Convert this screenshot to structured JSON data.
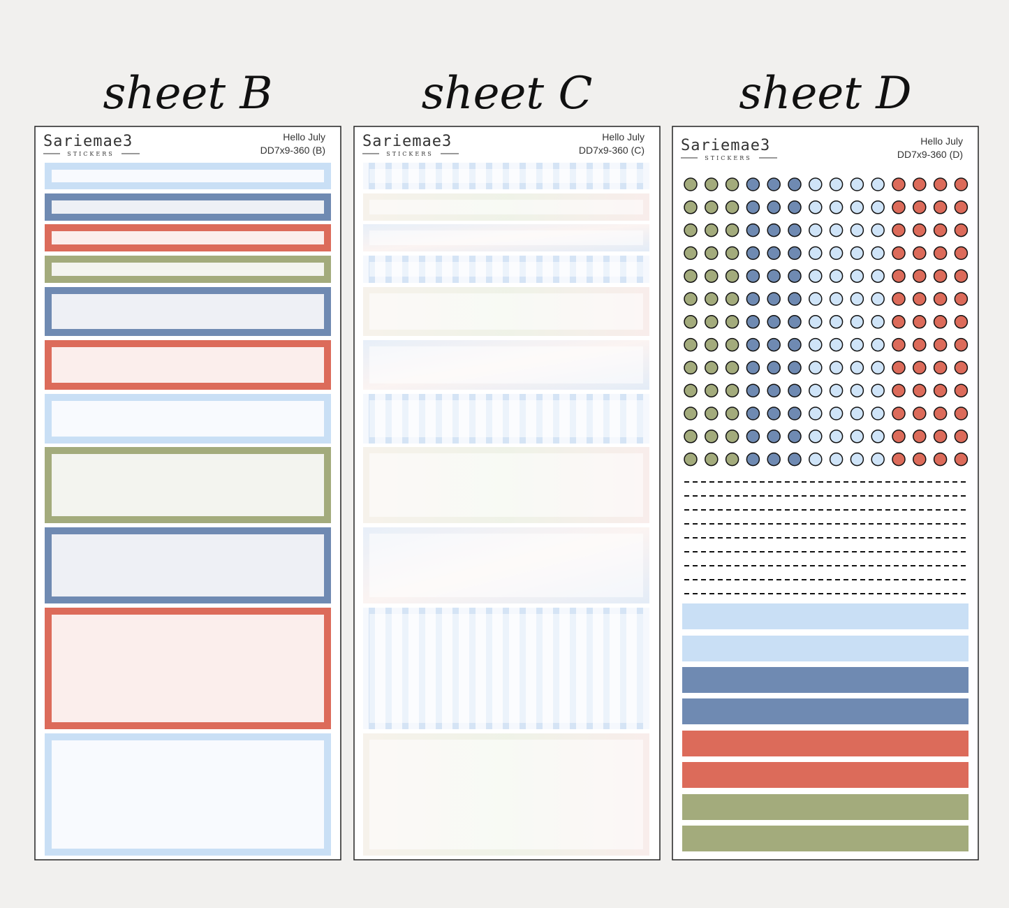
{
  "sheets": [
    {
      "title": "sheet B",
      "brand": "Sariemae3",
      "brand_sub": "STICKERS",
      "name": "Hello July",
      "code": "DD7x9-360 (B)"
    },
    {
      "title": "sheet C",
      "brand": "Sariemae3",
      "brand_sub": "STICKERS",
      "name": "Hello July",
      "code": "DD7x9-360 (C)"
    },
    {
      "title": "sheet D",
      "brand": "Sariemae3",
      "brand_sub": "STICKERS",
      "name": "Hello July",
      "code": "DD7x9-360 (D)"
    }
  ]
}
